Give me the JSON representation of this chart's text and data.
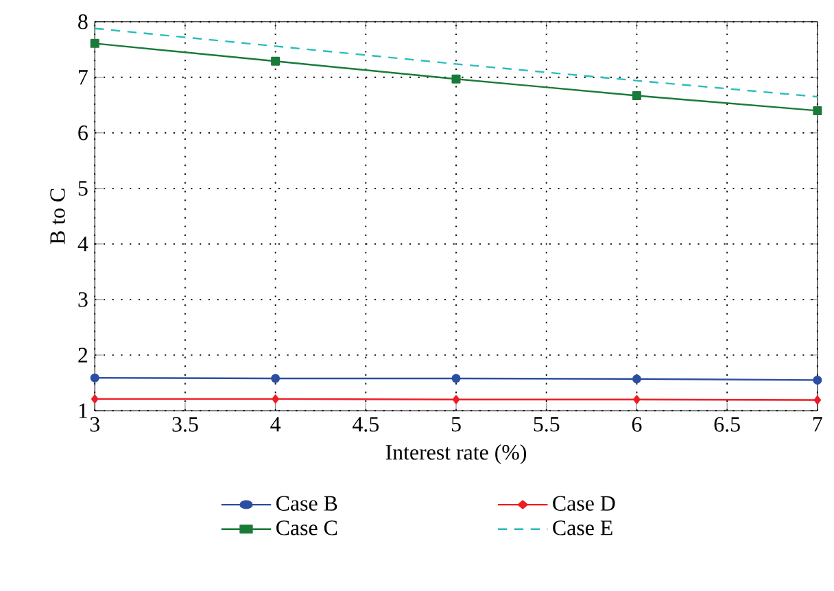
{
  "chart_data": {
    "type": "line",
    "xlabel": "Interest rate (%)",
    "ylabel": "B to C",
    "x": [
      3,
      4,
      5,
      6,
      7
    ],
    "series": [
      {
        "name": "Case B",
        "color": "#2b4ea2",
        "marker": "circle",
        "line_style": "solid",
        "values": [
          1.59,
          1.58,
          1.58,
          1.57,
          1.55
        ]
      },
      {
        "name": "Case C",
        "color": "#1a7a3a",
        "marker": "square",
        "line_style": "solid",
        "values": [
          7.61,
          7.29,
          6.97,
          6.67,
          6.4
        ]
      },
      {
        "name": "Case D",
        "color": "#ee1c24",
        "marker": "diamond",
        "line_style": "solid",
        "values": [
          1.21,
          1.21,
          1.2,
          1.2,
          1.19
        ]
      },
      {
        "name": "Case E",
        "color": "#2bbcbc",
        "marker": "none",
        "line_style": "dashed",
        "values": [
          7.88,
          7.56,
          7.24,
          6.94,
          6.65
        ]
      }
    ],
    "xlim": [
      3,
      7
    ],
    "ylim": [
      1,
      8
    ],
    "xticks": [
      3,
      3.5,
      4,
      4.5,
      5,
      5.5,
      6,
      6.5,
      7
    ],
    "yticks": [
      1,
      2,
      3,
      4,
      5,
      6,
      7,
      8
    ],
    "grid": true,
    "legend": "bottom"
  }
}
